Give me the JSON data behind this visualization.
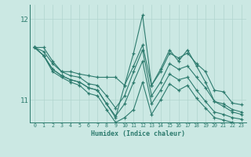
{
  "xlabel": "Humidex (Indice chaleur)",
  "background_color": "#cbe8e3",
  "line_color": "#2d7b6e",
  "grid_color": "#b0d4ce",
  "xlim": [
    -0.5,
    23.5
  ],
  "ylim": [
    10.72,
    12.18
  ],
  "yticks": [
    11,
    12
  ],
  "xticks": [
    0,
    1,
    2,
    3,
    4,
    5,
    6,
    7,
    8,
    9,
    10,
    11,
    12,
    13,
    14,
    15,
    16,
    17,
    18,
    19,
    20,
    21,
    22,
    23
  ],
  "s1": [
    11.65,
    11.65,
    11.48,
    11.35,
    11.35,
    11.32,
    11.3,
    11.28,
    11.28,
    11.28,
    11.18,
    11.42,
    11.68,
    11.18,
    11.35,
    11.58,
    11.52,
    11.58,
    11.45,
    11.35,
    11.12,
    11.1,
    10.96,
    10.94
  ],
  "s2": [
    11.65,
    11.6,
    11.45,
    11.35,
    11.3,
    11.28,
    11.2,
    11.18,
    11.05,
    10.9,
    11.05,
    11.35,
    11.62,
    11.05,
    11.22,
    11.45,
    11.38,
    11.42,
    11.28,
    11.15,
    10.98,
    10.95,
    10.88,
    10.85
  ],
  "s3": [
    11.65,
    11.55,
    11.38,
    11.3,
    11.25,
    11.22,
    11.15,
    11.12,
    10.95,
    10.8,
    10.95,
    11.22,
    11.48,
    10.95,
    11.12,
    11.32,
    11.25,
    11.28,
    11.12,
    10.98,
    10.85,
    10.82,
    10.78,
    10.76
  ],
  "s4": [
    11.65,
    11.55,
    11.38,
    11.3,
    11.25,
    11.22,
    11.15,
    11.12,
    10.95,
    10.78,
    11.18,
    11.58,
    12.05,
    11.18,
    11.38,
    11.62,
    11.48,
    11.62,
    11.42,
    11.22,
    10.98,
    10.92,
    10.85,
    10.82
  ],
  "s5": [
    11.65,
    11.55,
    11.35,
    11.28,
    11.22,
    11.18,
    11.08,
    11.05,
    10.88,
    10.72,
    10.78,
    10.88,
    11.22,
    10.82,
    11.0,
    11.2,
    11.12,
    11.18,
    11.02,
    10.9,
    10.78,
    10.75,
    10.72,
    10.7
  ]
}
